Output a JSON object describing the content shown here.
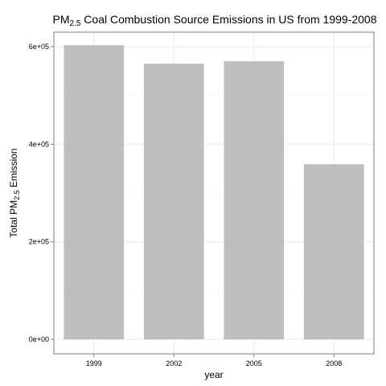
{
  "chart_data": {
    "type": "bar",
    "title": {
      "prefix": "PM",
      "subscript": "2.5",
      "suffix": " Coal Combustion Source Emissions in US from 1999-2008"
    },
    "xlabel": "year",
    "ylabel": {
      "prefix": "Total PM",
      "subscript": "2.5",
      "suffix": " Emission"
    },
    "categories": [
      "1999",
      "2002",
      "2005",
      "2008"
    ],
    "values": [
      603000,
      565000,
      570000,
      359000
    ],
    "ylim": [
      0,
      650000
    ],
    "yticks": [
      0,
      200000,
      400000,
      600000
    ],
    "ytick_labels": [
      "0e+00",
      "2e+05",
      "4e+05",
      "6e+05"
    ],
    "grid": true,
    "bar_color": "#bebebe",
    "grid_color": "#ebebeb",
    "grid_minor_color": "#f5f5f5",
    "panel_border_color": "#7f7f7f"
  }
}
